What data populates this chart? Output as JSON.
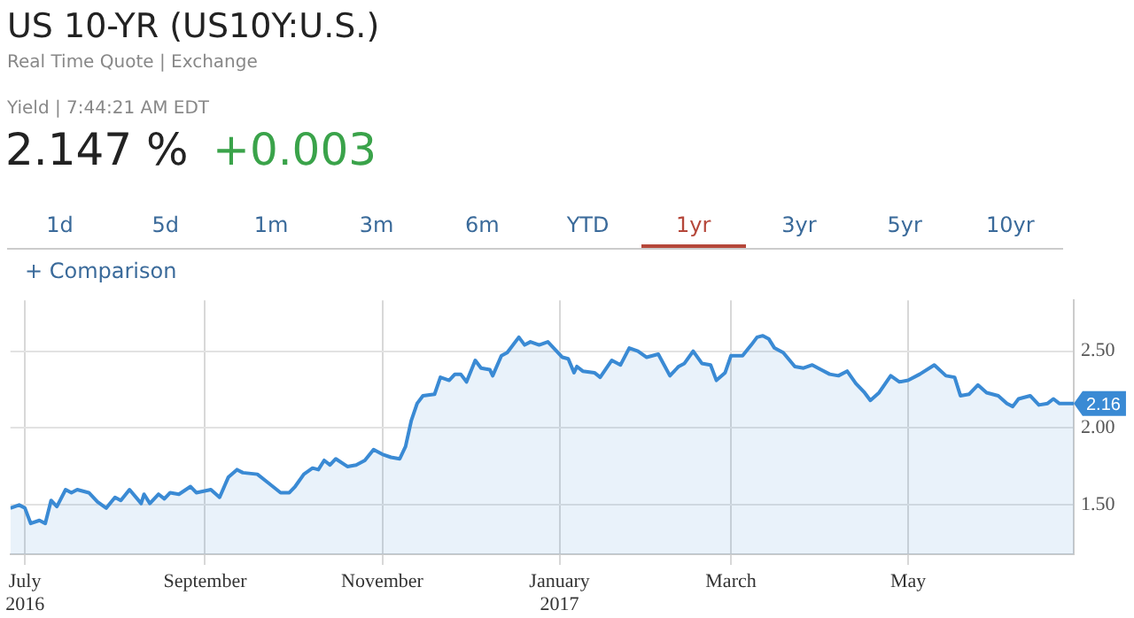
{
  "chart_data": {
    "type": "area",
    "title": "US 10-YR (US10Y:U.S.)",
    "subtitle": "Real Time Quote | Exchange",
    "annotations": [
      "Yield | 7:44:21 AM EDT",
      "2.147 %",
      "+0.003",
      "1d",
      "5d",
      "1m",
      "3m",
      "6m",
      "YTD",
      "1yr",
      "3yr",
      "5yr",
      "10yr",
      "+ Comparison",
      {
        "text": "2.16",
        "x": "2017-06-27",
        "y": 2.16
      }
    ],
    "x": [
      "2016-06-26",
      "2016-06-29",
      "2016-07-01",
      "2016-07-03",
      "2016-07-06",
      "2016-07-08",
      "2016-07-10",
      "2016-07-12",
      "2016-07-15",
      "2016-07-17",
      "2016-07-19",
      "2016-07-23",
      "2016-07-26",
      "2016-07-29",
      "2016-08-01",
      "2016-08-03",
      "2016-08-06",
      "2016-08-10",
      "2016-08-11",
      "2016-08-13",
      "2016-08-16",
      "2016-08-18",
      "2016-08-20",
      "2016-08-23",
      "2016-08-27",
      "2016-08-29",
      "2016-09-03",
      "2016-09-06",
      "2016-09-09",
      "2016-09-12",
      "2016-09-14",
      "2016-09-19",
      "2016-09-23",
      "2016-09-27",
      "2016-09-30",
      "2016-10-02",
      "2016-10-05",
      "2016-10-08",
      "2016-10-10",
      "2016-10-12",
      "2016-10-14",
      "2016-10-16",
      "2016-10-20",
      "2016-10-23",
      "2016-10-26",
      "2016-10-29",
      "2016-11-01",
      "2016-11-04",
      "2016-11-07",
      "2016-11-09",
      "2016-11-11",
      "2016-11-13",
      "2016-11-15",
      "2016-11-19",
      "2016-11-21",
      "2016-11-24",
      "2016-11-26",
      "2016-11-28",
      "2016-11-30",
      "2016-12-03",
      "2016-12-05",
      "2016-12-08",
      "2016-12-09",
      "2016-12-12",
      "2016-12-14",
      "2016-12-18",
      "2016-12-20",
      "2016-12-22",
      "2016-12-25",
      "2016-12-28",
      "2017-01-02",
      "2017-01-04",
      "2017-01-06",
      "2017-01-07",
      "2017-01-09",
      "2017-01-13",
      "2017-01-15",
      "2017-01-19",
      "2017-01-22",
      "2017-01-25",
      "2017-01-28",
      "2017-01-31",
      "2017-02-04",
      "2017-02-08",
      "2017-02-11",
      "2017-02-13",
      "2017-02-16",
      "2017-02-19",
      "2017-02-22",
      "2017-02-24",
      "2017-02-27",
      "2017-03-01",
      "2017-03-05",
      "2017-03-08",
      "2017-03-10",
      "2017-03-12",
      "2017-03-14",
      "2017-03-16",
      "2017-03-19",
      "2017-03-23",
      "2017-03-26",
      "2017-03-29",
      "2017-04-01",
      "2017-04-04",
      "2017-04-07",
      "2017-04-10",
      "2017-04-13",
      "2017-04-16",
      "2017-04-18",
      "2017-04-21",
      "2017-04-25",
      "2017-04-28",
      "2017-05-01",
      "2017-05-05",
      "2017-05-10",
      "2017-05-14",
      "2017-05-17",
      "2017-05-19",
      "2017-05-22",
      "2017-05-25",
      "2017-05-28",
      "2017-06-01",
      "2017-06-04",
      "2017-06-06",
      "2017-06-08",
      "2017-06-12",
      "2017-06-15",
      "2017-06-18",
      "2017-06-20",
      "2017-06-22",
      "2017-06-27"
    ],
    "series": [
      {
        "color": "#3a8ad4",
        "values": [
          1.48,
          1.5,
          1.48,
          1.38,
          1.4,
          1.38,
          1.53,
          1.49,
          1.6,
          1.58,
          1.6,
          1.58,
          1.52,
          1.48,
          1.55,
          1.53,
          1.6,
          1.51,
          1.57,
          1.51,
          1.57,
          1.54,
          1.58,
          1.57,
          1.62,
          1.58,
          1.6,
          1.55,
          1.68,
          1.73,
          1.71,
          1.7,
          1.64,
          1.58,
          1.58,
          1.62,
          1.7,
          1.74,
          1.73,
          1.79,
          1.76,
          1.8,
          1.75,
          1.76,
          1.79,
          1.86,
          1.83,
          1.81,
          1.8,
          1.88,
          2.05,
          2.16,
          2.21,
          2.22,
          2.33,
          2.31,
          2.35,
          2.35,
          2.3,
          2.44,
          2.39,
          2.38,
          2.34,
          2.47,
          2.49,
          2.59,
          2.54,
          2.56,
          2.54,
          2.56,
          2.46,
          2.45,
          2.36,
          2.4,
          2.37,
          2.36,
          2.33,
          2.44,
          2.41,
          2.52,
          2.5,
          2.46,
          2.48,
          2.34,
          2.4,
          2.42,
          2.5,
          2.42,
          2.41,
          2.31,
          2.36,
          2.47,
          2.47,
          2.54,
          2.59,
          2.6,
          2.58,
          2.52,
          2.49,
          2.4,
          2.39,
          2.41,
          2.38,
          2.35,
          2.34,
          2.37,
          2.29,
          2.23,
          2.18,
          2.23,
          2.34,
          2.3,
          2.31,
          2.35,
          2.41,
          2.34,
          2.33,
          2.21,
          2.22,
          2.28,
          2.23,
          2.21,
          2.16,
          2.14,
          2.19,
          2.21,
          2.15,
          2.16,
          2.19,
          2.16,
          2.16
        ]
      }
    ],
    "xlim": [
      "2016-06-26",
      "2017-06-27"
    ],
    "xticks": [
      {
        "value": "2016-07-01",
        "label": "July\n2016"
      },
      {
        "value": "2016-09-01",
        "label": "September"
      },
      {
        "value": "2016-11-01",
        "label": "November"
      },
      {
        "value": "2017-01-01",
        "label": "January\n2017"
      },
      {
        "value": "2017-03-01",
        "label": "March"
      },
      {
        "value": "2017-05-01",
        "label": "May"
      }
    ],
    "ylim": [
      1.18,
      2.83
    ],
    "yticks": [
      {
        "value": 1.5,
        "label": "1.50"
      },
      {
        "value": 2,
        "label": "2.00"
      },
      {
        "value": 2.5,
        "label": "2.50"
      }
    ],
    "grid": true,
    "legend": false,
    "marker": "none",
    "line_style": "solid"
  }
}
